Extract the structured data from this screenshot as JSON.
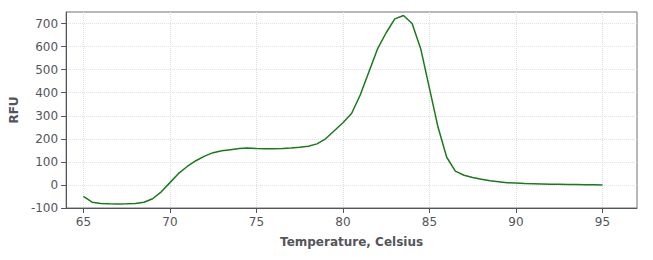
{
  "chart_data": {
    "type": "line",
    "xlabel": "Temperature, Celsius",
    "ylabel": "RFU",
    "color": "#1a7a1a",
    "grid": true,
    "xlim": [
      64.0,
      97.0
    ],
    "ylim": [
      -100,
      750
    ],
    "xticks": [
      65,
      70,
      75,
      80,
      85,
      90,
      95
    ],
    "yticks": [
      -100,
      0,
      100,
      200,
      300,
      400,
      500,
      600,
      700
    ],
    "x": [
      65.0,
      65.5,
      66.0,
      66.5,
      67.0,
      67.5,
      68.0,
      68.5,
      69.0,
      69.5,
      70.0,
      70.5,
      71.0,
      71.5,
      72.0,
      72.5,
      73.0,
      73.5,
      74.0,
      74.5,
      75.0,
      75.5,
      76.0,
      76.5,
      77.0,
      77.5,
      78.0,
      78.5,
      79.0,
      79.5,
      80.0,
      80.5,
      81.0,
      81.5,
      82.0,
      82.5,
      83.0,
      83.5,
      84.0,
      84.5,
      85.0,
      85.5,
      86.0,
      86.5,
      87.0,
      87.5,
      88.0,
      88.5,
      89.0,
      89.5,
      90.0,
      90.5,
      91.0,
      91.5,
      92.0,
      92.5,
      93.0,
      93.5,
      94.0,
      94.5,
      95.0
    ],
    "values": [
      -50,
      -75,
      -80,
      -82,
      -83,
      -82,
      -80,
      -75,
      -60,
      -30,
      10,
      50,
      80,
      105,
      125,
      140,
      148,
      153,
      158,
      160,
      158,
      157,
      157,
      158,
      160,
      163,
      168,
      178,
      200,
      235,
      270,
      310,
      390,
      490,
      590,
      660,
      720,
      735,
      700,
      590,
      420,
      250,
      120,
      60,
      42,
      32,
      25,
      18,
      14,
      10,
      8,
      6,
      5,
      4,
      3,
      3,
      2,
      2,
      1,
      1,
      0
    ]
  }
}
